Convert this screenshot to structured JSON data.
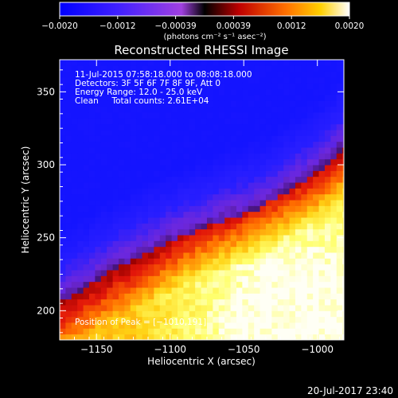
{
  "chart_data": {
    "type": "heatmap",
    "title": "Reconstructed RHESSI Image",
    "xlabel": "Heliocentric X (arcsec)",
    "ylabel": "Heliocentric Y (arcsec)",
    "xlim": [
      -1175,
      -982
    ],
    "ylim": [
      180,
      372
    ],
    "x_ticks": [
      -1150,
      -1100,
      -1050,
      -1000
    ],
    "y_ticks": [
      200,
      250,
      300,
      350
    ],
    "x_tick_labels": [
      "−1150",
      "−1100",
      "−1050",
      "−1000"
    ],
    "y_tick_labels": [
      "200",
      "250",
      "300",
      "350"
    ],
    "colorbar": {
      "range": [
        -0.002,
        0.002
      ],
      "tick_labels": [
        "−0.0020",
        "−0.0012",
        "−0.00039",
        "0.00039",
        "0.0012",
        "0.0020"
      ],
      "units_label": "(photons cm⁻² s⁻¹ asec⁻²)"
    },
    "annotations": [
      "11-Jul-2015 07:58:18.000 to 08:08:18.000",
      "Detectors: 3F 5F 6F 7F 8F 9F, Att 0",
      "Energy Range: 12.0 - 25.0 keV",
      "Clean     Total counts: 2.61E+04"
    ],
    "peak_label": "Position of Peak = [−1010,191]",
    "peak": [
      -1010,
      191
    ],
    "zero_contour": [
      [
        -1175,
        205
      ],
      [
        -1135,
        230
      ],
      [
        -1090,
        252
      ],
      [
        -1040,
        270
      ],
      [
        -1000,
        295
      ],
      [
        -982,
        312
      ]
    ],
    "grid": false
  },
  "footer": {
    "timestamp": "20-Jul-2017 23:40"
  },
  "colors": {
    "blue": "#2020ff",
    "purple": "#7a28cc",
    "black": "#000000",
    "red": "#e01010",
    "orange": "#ff8a00",
    "yellow": "#ffff40",
    "white": "#ffffff"
  }
}
